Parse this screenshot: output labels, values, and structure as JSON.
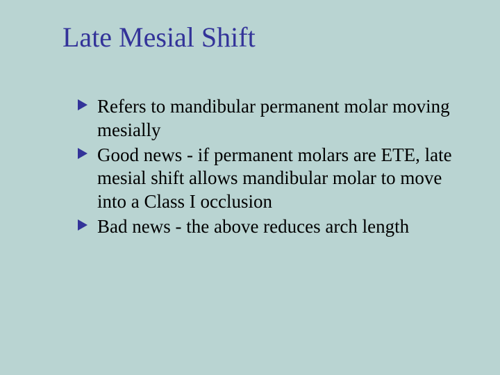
{
  "slide": {
    "title": "Late Mesial Shift",
    "title_color": "#333399",
    "title_fontsize": 40,
    "background_color": "#b9d4d2",
    "body_color": "#000000",
    "body_fontsize": 27,
    "bullet_color": "#333399",
    "font_family": "Georgia, 'Times New Roman', Times, serif",
    "bullets": [
      {
        "text": "Refers to mandibular permanent molar moving mesially"
      },
      {
        "text": "Good news - if permanent molars are ETE, late mesial shift allows mandibular molar to move into a Class I occlusion"
      },
      {
        "text": "Bad news - the above reduces arch length"
      }
    ]
  }
}
